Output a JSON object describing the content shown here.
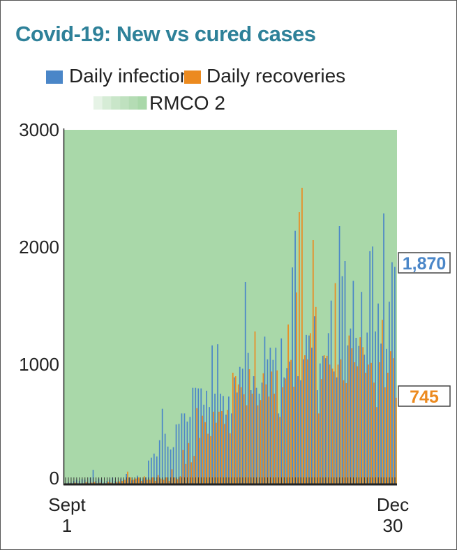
{
  "chart_data": {
    "type": "bar",
    "title": "Covid-19: New vs cured cases",
    "xlabel": "",
    "ylabel": "",
    "ylim": [
      0,
      3000
    ],
    "yticks": [
      "0",
      "1000",
      "2000",
      "3000"
    ],
    "x_start_label": [
      "Sept",
      "1"
    ],
    "x_end_label": [
      "Dec",
      "30"
    ],
    "x_range": [
      "Sept 1",
      "Dec 30"
    ],
    "grid": false,
    "legend_position": "top",
    "background_period": {
      "name": "RMCO 2",
      "color": "#a9d8a9",
      "covers": "entire range"
    },
    "series": [
      {
        "name": "Daily infections",
        "color": "#4a86c8",
        "values": [
          10,
          20,
          15,
          30,
          40,
          30,
          45,
          40,
          20,
          60,
          125,
          30,
          50,
          40,
          20,
          30,
          40,
          60,
          30,
          25,
          50,
          40,
          90,
          60,
          35,
          40,
          75,
          50,
          40,
          60,
          205,
          230,
          265,
          240,
          380,
          650,
          435,
          325,
          300,
          320,
          515,
          520,
          610,
          610,
          540,
          580,
          830,
          830,
          825,
          825,
          685,
          805,
          665,
          1195,
          780,
          1205,
          780,
          760,
          600,
          755,
          610,
          920,
          790,
          1010,
          995,
          1740,
          1130,
          810,
          930,
          830,
          780,
          875,
          1270,
          1075,
          1175,
          1070,
          1175,
          610,
          1255,
          920,
          1000,
          1055,
          1865,
          2180,
          930,
          895,
          1075,
          1285,
          1280,
          1175,
          1445,
          810,
          1040,
          1105,
          1085,
          1300,
          1580,
          970,
          920,
          2220,
          1790,
          1920,
          1195,
          1340,
          1750,
          1260,
          1190,
          1655,
          1115,
          1305,
          2005,
          2045,
          1315,
          1555,
          1210,
          2330,
          1165,
          1570,
          1910,
          1870
        ]
      },
      {
        "name": "Daily recoveries",
        "color": "#ec8a1f",
        "values": [
          5,
          10,
          5,
          15,
          10,
          5,
          10,
          20,
          10,
          15,
          20,
          10,
          15,
          5,
          10,
          20,
          15,
          10,
          20,
          25,
          30,
          40,
          110,
          60,
          40,
          50,
          60,
          30,
          70,
          40,
          40,
          60,
          30,
          80,
          50,
          40,
          60,
          30,
          130,
          60,
          45,
          70,
          295,
          175,
          355,
          190,
          245,
          655,
          400,
          590,
          535,
          435,
          415,
          625,
          530,
          625,
          630,
          520,
          640,
          440,
          960,
          930,
          860,
          835,
          775,
          680,
          990,
          780,
          1315,
          680,
          725,
          955,
          860,
          755,
          970,
          780,
          980,
          580,
          835,
          910,
          1375,
          1070,
          840,
          1650,
          2340,
          2550,
          1110,
          1075,
          1300,
          2100,
          1525,
          610,
          905,
          1110,
          1105,
          1030,
          995,
          1730,
          1030,
          1075,
          895,
          870,
          1280,
          1170,
          1050,
          1015,
          1265,
          1180,
          960,
          1030,
          1045,
          875,
          665,
          1050,
          1415,
          835,
          960,
          1145,
          1085,
          745
        ]
      }
    ],
    "callouts": {
      "infections_last": "1,870",
      "recoveries_last": "745"
    }
  },
  "legend": {
    "infections": "Daily infections",
    "recoveries": "Daily recoveries",
    "rmco": "RMCO 2",
    "rmco_gradient": [
      "#e6f3e6",
      "#d6ecd6",
      "#c9e6c9",
      "#bfe1bf",
      "#b4dcb4",
      "#a9d8a9"
    ]
  }
}
